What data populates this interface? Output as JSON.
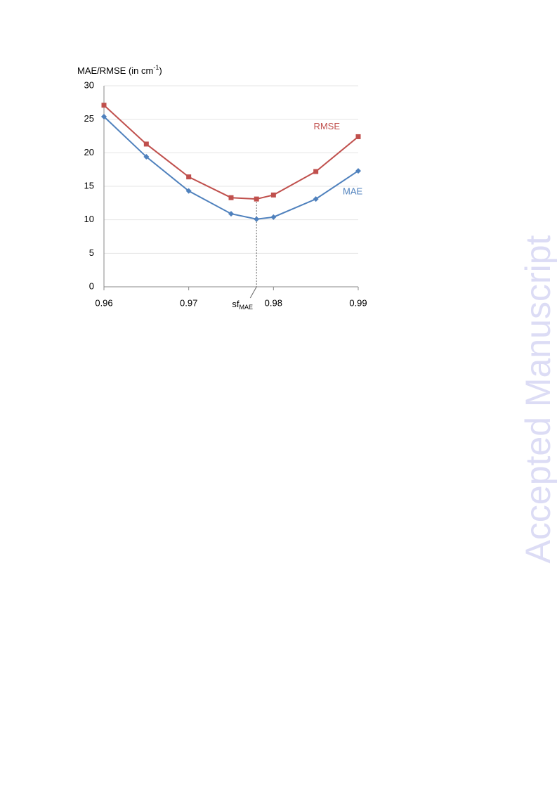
{
  "chart_data": {
    "type": "line",
    "y_label": [
      "MAE/RMSE (in cm",
      "-1",
      ")"
    ],
    "x": [
      0.96,
      0.965,
      0.97,
      0.975,
      0.978,
      0.98,
      0.985,
      0.99
    ],
    "series": [
      {
        "name": "RMSE",
        "color": "#c0504d",
        "marker": "square",
        "values": [
          27.1,
          21.3,
          16.4,
          13.3,
          13.1,
          13.7,
          17.2,
          22.4
        ]
      },
      {
        "name": "MAE",
        "color": "#4f81bd",
        "marker": "diamond",
        "values": [
          25.4,
          19.4,
          14.3,
          10.9,
          10.1,
          10.4,
          13.1,
          17.3
        ]
      }
    ],
    "xlim": [
      0.96,
      0.99
    ],
    "xticks": [
      0.96,
      0.97,
      0.98,
      0.99
    ],
    "ylim": [
      0,
      30
    ],
    "yticks": [
      0,
      5,
      10,
      15,
      20,
      25,
      30
    ],
    "grid": true,
    "annotation": {
      "text": [
        "sf",
        "MAE"
      ],
      "x": 0.978
    }
  },
  "watermark": "Accepted Manuscript"
}
